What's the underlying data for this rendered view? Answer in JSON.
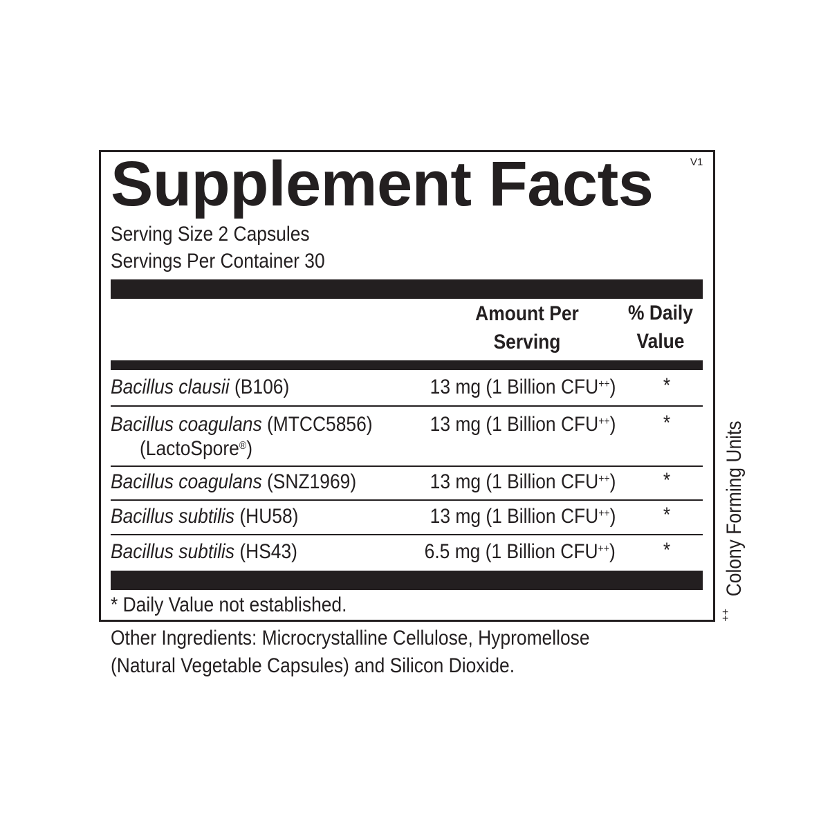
{
  "title": "Supplement Facts",
  "version": "V1",
  "serving_size": "Serving Size 2 Capsules",
  "servings_per_container": "Servings Per Container 30",
  "headers": {
    "amount_line1": "Amount Per",
    "amount_line2": "Serving",
    "dv_line1": "% Daily",
    "dv_line2": "Value"
  },
  "rows": [
    {
      "name": "Bacillus clausii",
      "strain": " (B106)",
      "extra": "",
      "amount": "13 mg (1 Billion CFU",
      "amount_sup": "++",
      "amount_end": ")",
      "dv": "*"
    },
    {
      "name": "Bacillus coagulans",
      "strain": " (MTCC5856)",
      "extra": "(LactoSpore",
      "extra_sup": "®",
      "extra_end": ")",
      "amount": "13 mg (1 Billion CFU",
      "amount_sup": "++",
      "amount_end": ")",
      "dv": "*"
    },
    {
      "name": "Bacillus coagulans",
      "strain": " (SNZ1969)",
      "extra": "",
      "amount": "13 mg (1 Billion CFU",
      "amount_sup": "++",
      "amount_end": ")",
      "dv": "*"
    },
    {
      "name": "Bacillus subtilis",
      "strain": " (HU58)",
      "extra": "",
      "amount": "13 mg (1 Billion CFU",
      "amount_sup": "++",
      "amount_end": ")",
      "dv": "*"
    },
    {
      "name": "Bacillus subtilis",
      "strain": " (HS43)",
      "extra": "",
      "amount": "6.5 mg (1 Billion CFU",
      "amount_sup": "++",
      "amount_end": ")",
      "dv": "*"
    }
  ],
  "footnote": "* Daily Value not established.",
  "other_ingredients_line1": "Other Ingredients: Microcrystalline Cellulose, Hypromellose",
  "other_ingredients_line2": "(Natural Vegetable Capsules) and Silicon Dioxide.",
  "side_note_sup": "++",
  "side_note": " Colony Forming Units"
}
